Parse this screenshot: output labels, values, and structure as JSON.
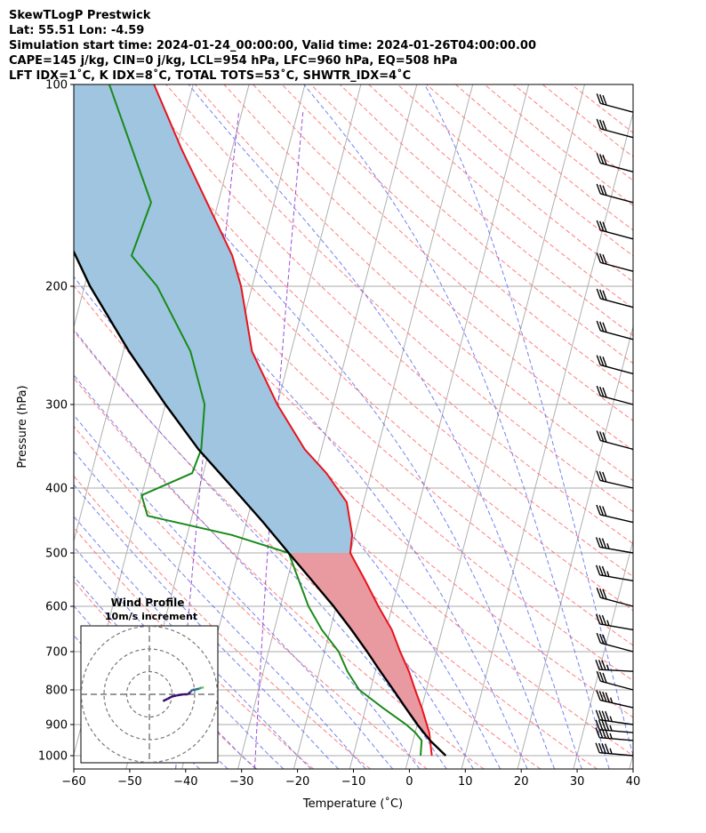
{
  "header": {
    "title": "SkewTLogP Prestwick",
    "latlon": "Lat: 55.51   Lon: -4.59",
    "times": "Simulation start time: 2024-01-24_00:00:00, Valid time: 2024-01-26T04:00:00.00",
    "params": "CAPE=145 j/kg, CIN=0 j/kg, LCL=954 hPa, LFC=960 hPa, EQ=508 hPa",
    "indices": "LFT IDX=1˚C, K IDX=8˚C, TOTAL TOTS=53˚C, SHWTR_IDX=4˚C"
  },
  "axes": {
    "xlabel": "Temperature (˚C)",
    "ylabel": "Pressure (hPa)"
  },
  "inset": {
    "title": "Wind Profile",
    "subtitle": "10m/s increment"
  },
  "colors": {
    "temperature": "#e8141e",
    "dewpoint": "#1a8a1a",
    "parcel": "#000000",
    "cape_fill": "#e89aa0",
    "cin_fill": "#9fc5e0",
    "dry_adiabat": "#ff7070",
    "moist_adiabat": "#5a6cf0",
    "mixing_ratio": "#9a4cd8",
    "isotherm": "#b0b0b0"
  },
  "chart_data": {
    "type": "line",
    "skew": true,
    "y_scale": "log",
    "x_ticks": [
      -60,
      -50,
      -40,
      -30,
      -20,
      -10,
      0,
      10,
      20,
      30,
      40
    ],
    "y_ticks": [
      1000,
      900,
      800,
      700,
      600,
      500,
      400,
      300,
      200,
      100
    ],
    "xlim": [
      -60,
      40
    ],
    "ylim": [
      1050,
      100
    ],
    "series": [
      {
        "key": "temperature",
        "points": [
          [
            1000,
            4
          ],
          [
            925,
            2.5
          ],
          [
            850,
            0
          ],
          [
            800,
            -2
          ],
          [
            750,
            -4
          ],
          [
            700,
            -6.5
          ],
          [
            650,
            -9
          ],
          [
            600,
            -12.5
          ],
          [
            550,
            -16
          ],
          [
            500,
            -20
          ],
          [
            470,
            -20.5
          ],
          [
            420,
            -23
          ],
          [
            380,
            -28
          ],
          [
            350,
            -33
          ],
          [
            300,
            -40
          ],
          [
            250,
            -47
          ],
          [
            200,
            -52
          ],
          [
            180,
            -55
          ],
          [
            150,
            -62
          ],
          [
            125,
            -69
          ],
          [
            100,
            -77
          ]
        ]
      },
      {
        "key": "dewpoint",
        "points": [
          [
            1000,
            2
          ],
          [
            950,
            1.5
          ],
          [
            925,
            0
          ],
          [
            900,
            -2
          ],
          [
            850,
            -7
          ],
          [
            800,
            -12
          ],
          [
            750,
            -15
          ],
          [
            700,
            -17.5
          ],
          [
            650,
            -21.5
          ],
          [
            600,
            -25
          ],
          [
            500,
            -31
          ],
          [
            470,
            -42
          ],
          [
            440,
            -58
          ],
          [
            410,
            -60
          ],
          [
            380,
            -52
          ],
          [
            350,
            -51.5
          ],
          [
            300,
            -53
          ],
          [
            250,
            -58
          ],
          [
            200,
            -67
          ],
          [
            180,
            -73
          ],
          [
            150,
            -72
          ],
          [
            100,
            -85
          ]
        ]
      },
      {
        "key": "parcel",
        "points": [
          [
            1000,
            6.5
          ],
          [
            950,
            3.0
          ],
          [
            900,
            0
          ],
          [
            850,
            -2.9
          ],
          [
            800,
            -5.9
          ],
          [
            750,
            -9.1
          ],
          [
            700,
            -12.4
          ],
          [
            650,
            -16.2
          ],
          [
            600,
            -20.5
          ],
          [
            550,
            -25.5
          ],
          [
            500,
            -31
          ],
          [
            450,
            -37
          ],
          [
            400,
            -44
          ],
          [
            350,
            -52
          ],
          [
            300,
            -60
          ],
          [
            250,
            -69
          ],
          [
            200,
            -79
          ],
          [
            150,
            -90
          ],
          [
            125,
            -96
          ],
          [
            100,
            -102
          ]
        ]
      }
    ],
    "wind_barbs": [
      {
        "p": 1000,
        "speed_kt": 35,
        "dir": 275
      },
      {
        "p": 950,
        "speed_kt": 35,
        "dir": 275
      },
      {
        "p": 925,
        "speed_kt": 35,
        "dir": 275
      },
      {
        "p": 900,
        "speed_kt": 35,
        "dir": 278
      },
      {
        "p": 850,
        "speed_kt": 35,
        "dir": 283
      },
      {
        "p": 800,
        "speed_kt": 30,
        "dir": 285
      },
      {
        "p": 750,
        "speed_kt": 25,
        "dir": 273
      },
      {
        "p": 700,
        "speed_kt": 30,
        "dir": 285
      },
      {
        "p": 650,
        "speed_kt": 25,
        "dir": 280
      },
      {
        "p": 600,
        "speed_kt": 30,
        "dir": 285
      },
      {
        "p": 550,
        "speed_kt": 25,
        "dir": 280
      },
      {
        "p": 500,
        "speed_kt": 25,
        "dir": 280
      },
      {
        "p": 450,
        "speed_kt": 30,
        "dir": 283
      },
      {
        "p": 400,
        "speed_kt": 30,
        "dir": 283
      },
      {
        "p": 350,
        "speed_kt": 30,
        "dir": 285
      },
      {
        "p": 300,
        "speed_kt": 30,
        "dir": 285
      },
      {
        "p": 270,
        "speed_kt": 30,
        "dir": 285
      },
      {
        "p": 240,
        "speed_kt": 30,
        "dir": 285
      },
      {
        "p": 215,
        "speed_kt": 30,
        "dir": 285
      },
      {
        "p": 190,
        "speed_kt": 30,
        "dir": 285
      },
      {
        "p": 170,
        "speed_kt": 30,
        "dir": 285
      },
      {
        "p": 150,
        "speed_kt": 30,
        "dir": 285
      },
      {
        "p": 135,
        "speed_kt": 30,
        "dir": 285
      },
      {
        "p": 120,
        "speed_kt": 30,
        "dir": 285
      },
      {
        "p": 110,
        "speed_kt": 30,
        "dir": 285
      }
    ],
    "hodograph": {
      "ring_increment_ms": 10,
      "points": [
        [
          -6,
          -3
        ],
        [
          -8,
          -2
        ],
        [
          -10,
          -1
        ],
        [
          -12,
          -0.5
        ],
        [
          -15,
          0
        ],
        [
          -17,
          0
        ],
        [
          -18,
          1
        ],
        [
          -19,
          2
        ],
        [
          -20,
          2
        ],
        [
          -22,
          2.5
        ],
        [
          -23,
          3
        ],
        [
          -24,
          3
        ]
      ]
    }
  }
}
